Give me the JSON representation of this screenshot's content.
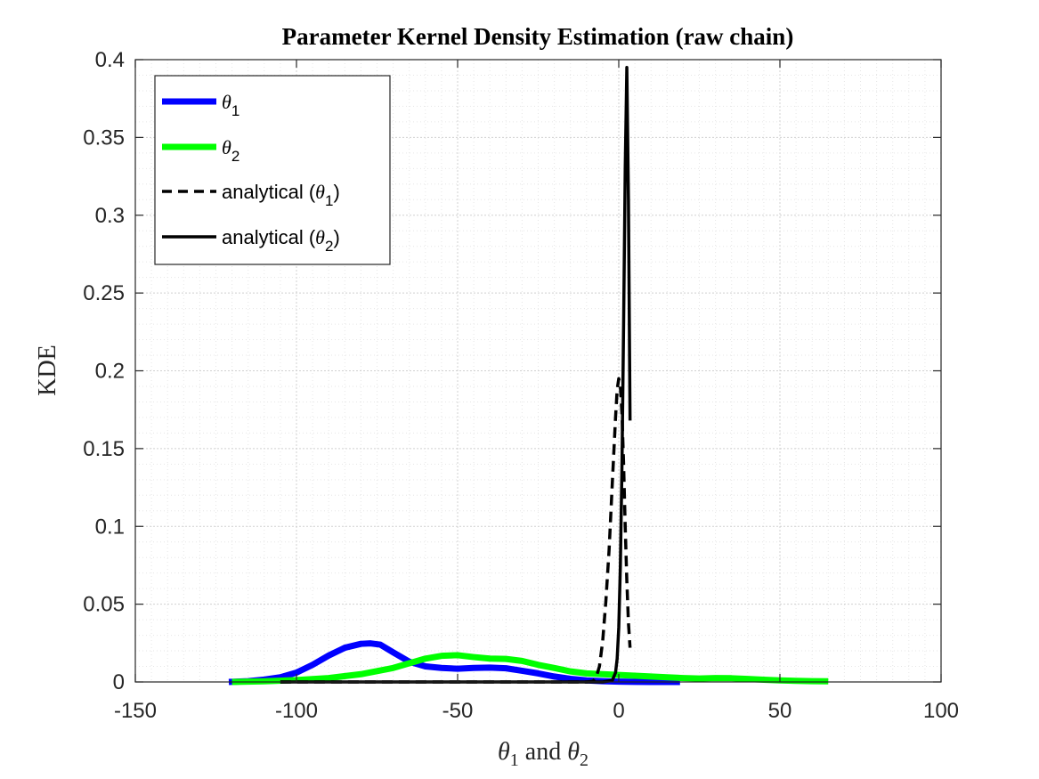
{
  "chart_data": {
    "type": "line",
    "title": "Parameter Kernel Density Estimation (raw chain)",
    "xlabel": {
      "symbol": "θ",
      "sub1": "1",
      "mid": " and ",
      "sub2": "2"
    },
    "ylabel": "KDE",
    "xlim": [
      -150,
      100
    ],
    "ylim": [
      0,
      0.4
    ],
    "xticks": [
      -150,
      -100,
      -50,
      0,
      50,
      100
    ],
    "xtick_labels": [
      "-150",
      "-100",
      "-50",
      "0",
      "50",
      "100"
    ],
    "yticks": [
      0,
      0.05,
      0.1,
      0.15,
      0.2,
      0.25,
      0.3,
      0.35,
      0.4
    ],
    "ytick_labels": [
      "0",
      "0.05",
      "0.1",
      "0.15",
      "0.2",
      "0.25",
      "0.3",
      "0.35",
      "0.4"
    ],
    "grid": "minor dotted",
    "legend_position": "top-left",
    "series": [
      {
        "legend": {
          "prefix": "",
          "symbol": "θ",
          "sub": "1",
          "suffix": ""
        },
        "color": "#0000ff",
        "style": "solid",
        "weight": "thick",
        "x": [
          -121,
          -115,
          -110,
          -105,
          -100,
          -95,
          -90,
          -85,
          -80,
          -77,
          -74,
          -70,
          -65,
          -60,
          -55,
          -50,
          -45,
          -40,
          -35,
          -30,
          -25,
          -20,
          -15,
          -10,
          -5,
          0,
          5,
          10,
          15,
          19
        ],
        "y": [
          0.0,
          0.0005,
          0.0015,
          0.003,
          0.006,
          0.011,
          0.017,
          0.022,
          0.0245,
          0.0248,
          0.024,
          0.019,
          0.013,
          0.01,
          0.009,
          0.0085,
          0.009,
          0.0092,
          0.0088,
          0.0072,
          0.0055,
          0.0035,
          0.002,
          0.001,
          0.0005,
          0.0002,
          0.0001,
          0.0,
          0.0,
          0.0
        ]
      },
      {
        "legend": {
          "prefix": "",
          "symbol": "θ",
          "sub": "2",
          "suffix": ""
        },
        "color": "#00ff00",
        "style": "solid",
        "weight": "thick",
        "x": [
          -120,
          -110,
          -100,
          -90,
          -80,
          -70,
          -65,
          -60,
          -55,
          -50,
          -45,
          -40,
          -35,
          -30,
          -25,
          -20,
          -15,
          -10,
          -5,
          0,
          5,
          10,
          15,
          20,
          25,
          30,
          35,
          40,
          45,
          50,
          55,
          60,
          65
        ],
        "y": [
          0.0,
          0.0004,
          0.0012,
          0.0025,
          0.005,
          0.009,
          0.012,
          0.015,
          0.0168,
          0.0172,
          0.016,
          0.015,
          0.0148,
          0.0135,
          0.011,
          0.009,
          0.0068,
          0.0055,
          0.005,
          0.0045,
          0.004,
          0.0035,
          0.003,
          0.0025,
          0.0022,
          0.0025,
          0.0024,
          0.0019,
          0.0014,
          0.001,
          0.0007,
          0.0005,
          0.0004
        ]
      },
      {
        "legend": {
          "prefix": "analytical (",
          "symbol": "θ",
          "sub": "1",
          "suffix": ")"
        },
        "color": "#000000",
        "style": "dashed",
        "weight": "normal",
        "x": [
          -105,
          -80,
          -60,
          -40,
          -20,
          -10,
          -8,
          -7,
          -6,
          -5,
          -4,
          -3,
          -2,
          -1,
          -0.5,
          0,
          0.5,
          1,
          1.5,
          2,
          2.5,
          3,
          3.5
        ],
        "y": [
          0.0,
          0.0,
          0.0,
          0.0,
          0.0,
          0.0,
          0.0005,
          0.003,
          0.01,
          0.026,
          0.052,
          0.085,
          0.128,
          0.17,
          0.188,
          0.195,
          0.19,
          0.172,
          0.14,
          0.1,
          0.065,
          0.038,
          0.022
        ]
      },
      {
        "legend": {
          "prefix": "analytical (",
          "symbol": "θ",
          "sub": "2",
          "suffix": ")"
        },
        "color": "#000000",
        "style": "solid",
        "weight": "normal",
        "x": [
          -105,
          -80,
          -60,
          -40,
          -20,
          -5,
          -2,
          -1,
          -0.5,
          0,
          0.5,
          1,
          1.5,
          2,
          2.5,
          3,
          3.5
        ],
        "y": [
          0.0,
          0.0,
          0.0,
          0.0,
          0.0,
          0.0,
          0.001,
          0.006,
          0.015,
          0.035,
          0.075,
          0.14,
          0.23,
          0.33,
          0.395,
          0.31,
          0.168
        ]
      }
    ]
  }
}
